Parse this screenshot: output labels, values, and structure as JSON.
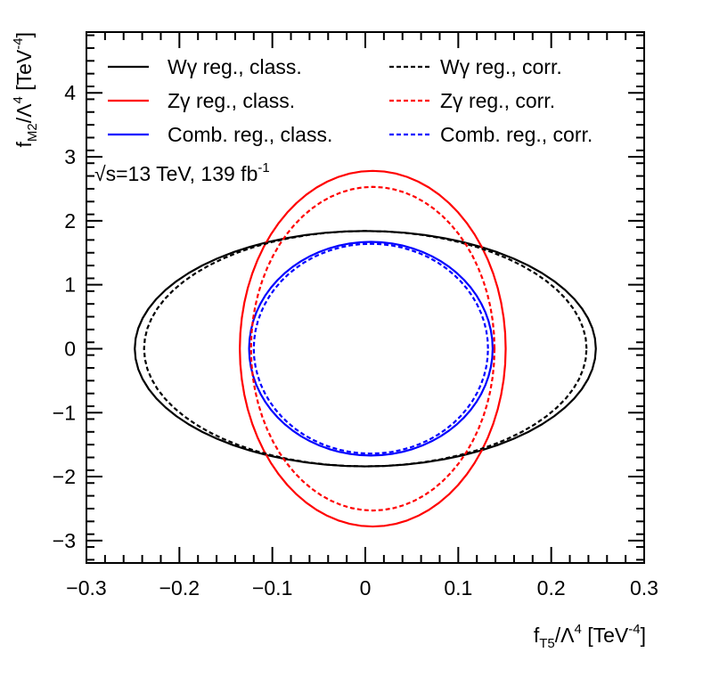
{
  "chart_data": {
    "type": "line",
    "title": "",
    "xlabel": {
      "base": "f",
      "sub": "T5",
      "mid": "/Λ",
      "sup": "4",
      "unit": " [TeV",
      "unit_sup": "-4",
      "close": "]"
    },
    "ylabel": {
      "base": "f",
      "sub": "M2",
      "mid": "/Λ",
      "sup": "4",
      "unit": " [TeV",
      "unit_sup": "-4",
      "close": "]"
    },
    "xlim": [
      -0.3,
      0.3
    ],
    "ylim": [
      -3.35,
      4.95
    ],
    "x_ticks": [
      -0.3,
      -0.2,
      -0.1,
      0,
      0.1,
      0.2,
      0.3
    ],
    "x_tick_labels": [
      "−0.3",
      "−0.2",
      "−0.1",
      "0",
      "0.1",
      "0.2",
      "0.3"
    ],
    "y_ticks": [
      -3,
      -2,
      -1,
      0,
      1,
      2,
      3,
      4
    ],
    "y_tick_labels": [
      "−3",
      "−2",
      "−1",
      "0",
      "1",
      "2",
      "3",
      "4"
    ],
    "grid": false,
    "annotation": {
      "prefix": "√",
      "text": "s=13 TeV, 139 fb",
      "sup": "-1"
    },
    "legend_position": "top",
    "series": [
      {
        "name": "Wγ reg., class.",
        "color": "#000000",
        "style": "solid",
        "shape": "ellipse",
        "center": [
          0.0,
          0.0
        ],
        "x_half_width": 0.248,
        "y_half_height": 1.84
      },
      {
        "name": "Zγ reg., class.",
        "color": "#ff0000",
        "style": "solid",
        "shape": "ellipse",
        "center": [
          0.008,
          0.0
        ],
        "x_half_width": 0.143,
        "y_half_height": 2.78
      },
      {
        "name": "Comb. reg., class.",
        "color": "#0000ff",
        "style": "solid",
        "shape": "ellipse",
        "center": [
          0.006,
          0.0
        ],
        "x_half_width": 0.131,
        "y_half_height": 1.67
      },
      {
        "name": "Wγ reg., corr.",
        "color": "#000000",
        "style": "dashed",
        "shape": "ellipse",
        "center": [
          0.0,
          0.0
        ],
        "x_half_width": 0.238,
        "y_half_height": 1.84
      },
      {
        "name": "Zγ reg., corr.",
        "color": "#ff0000",
        "style": "dashed",
        "shape": "ellipse",
        "center": [
          0.008,
          0.0
        ],
        "x_half_width": 0.131,
        "y_half_height": 2.53
      },
      {
        "name": "Comb. reg., corr.",
        "color": "#0000ff",
        "style": "dashed",
        "shape": "ellipse",
        "center": [
          0.006,
          0.0
        ],
        "x_half_width": 0.126,
        "y_half_height": 1.64
      }
    ]
  }
}
